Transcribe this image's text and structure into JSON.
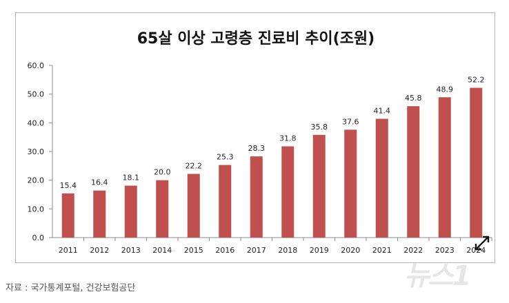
{
  "chart_data": {
    "type": "bar",
    "title": "65살 이상 고령층 진료비 추이(조원)",
    "categories": [
      "2011",
      "2012",
      "2013",
      "2014",
      "2015",
      "2016",
      "2017",
      "2018",
      "2019",
      "2020",
      "2021",
      "2022",
      "2023",
      "2024"
    ],
    "values": [
      15.4,
      16.4,
      18.1,
      20.0,
      22.2,
      25.3,
      28.3,
      31.8,
      35.8,
      37.6,
      41.4,
      45.8,
      48.9,
      52.2
    ],
    "ylim": [
      0,
      60
    ],
    "yticks": [
      "0.0",
      "10.0",
      "20.0",
      "30.0",
      "40.0",
      "50.0",
      "60.0"
    ],
    "grid": false,
    "bar_color": "#c0504d"
  },
  "caption": "자료 : 국가통계포털, 건강보험공단",
  "watermark": "뉴스1",
  "expand_icon": "expand-arrows-icon"
}
